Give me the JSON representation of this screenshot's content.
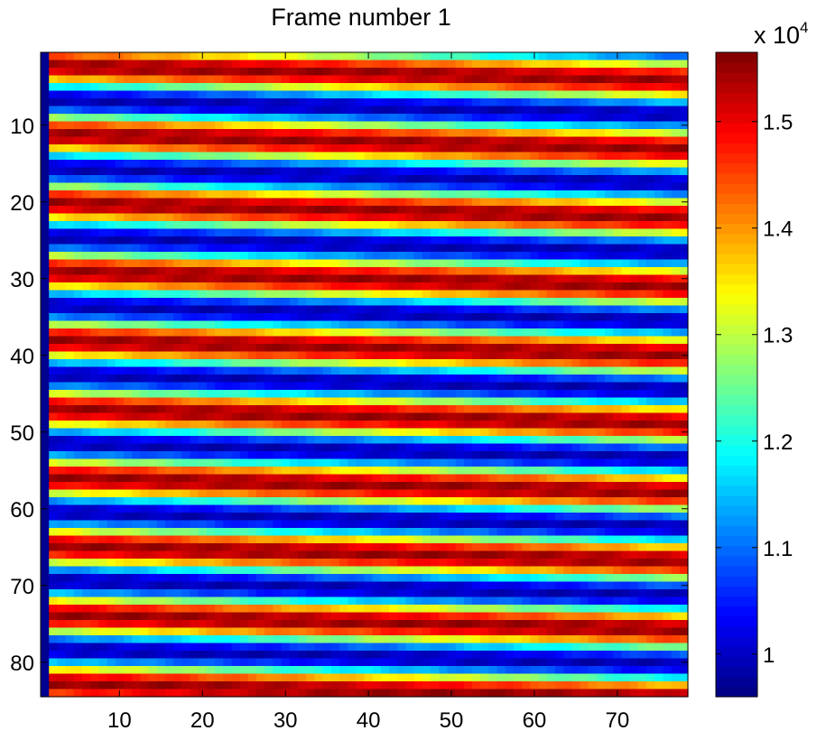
{
  "chart_data": {
    "type": "heatmap",
    "title": "Frame number 1",
    "xlabel": "",
    "ylabel": "",
    "columns": 78,
    "rows": 84,
    "x_ticks": [
      10,
      20,
      30,
      40,
      50,
      60,
      70
    ],
    "y_ticks": [
      10,
      20,
      30,
      40,
      50,
      60,
      70,
      80
    ],
    "colormap": "jet",
    "colorbar": {
      "min": 0.96,
      "max": 1.565,
      "ticks": [
        1,
        1.1,
        1.2,
        1.3,
        1.4,
        1.5
      ],
      "tick_labels": [
        "1",
        "1.1",
        "1.2",
        "1.3",
        "1.4",
        "1.5"
      ],
      "exponent_prefix": "x 10",
      "exponent": "4"
    },
    "row_period": 8.95,
    "row_amplitude_min": 0.99,
    "row_amplitude_max": 1.55,
    "first_column_value": 0.97,
    "grid": false,
    "description_of_pattern": ""
  }
}
